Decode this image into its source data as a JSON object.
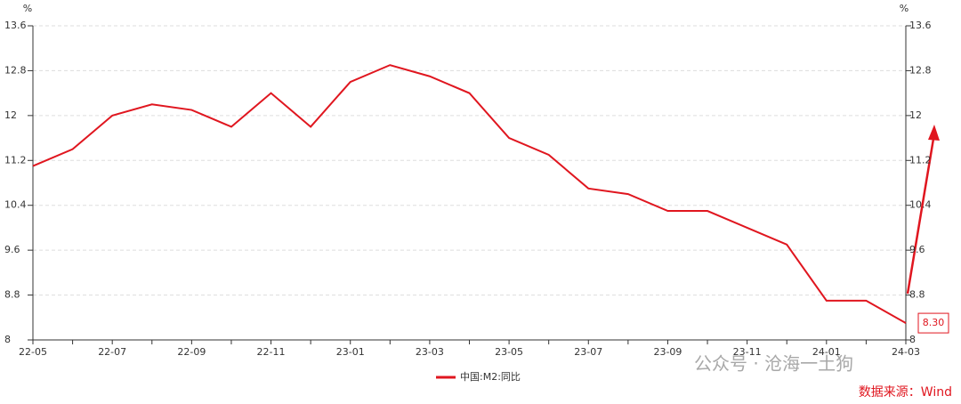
{
  "chart_data": {
    "type": "line",
    "y_unit": "%",
    "y2_unit": "%",
    "categories": [
      "22-05",
      null,
      "22-07",
      null,
      "22-09",
      null,
      "22-11",
      null,
      "23-01",
      null,
      "23-03",
      null,
      "23-05",
      null,
      "23-07",
      null,
      "23-09",
      null,
      "23-11",
      null,
      "24-01",
      null,
      "24-03"
    ],
    "series": [
      {
        "name": "中国:M2:同比",
        "color": "#e0161f",
        "values": [
          11.1,
          11.4,
          12.0,
          12.2,
          12.1,
          11.8,
          12.4,
          11.8,
          12.6,
          12.9,
          12.7,
          12.4,
          11.6,
          11.3,
          10.7,
          10.6,
          10.3,
          10.3,
          10.0,
          9.7,
          8.7,
          8.7,
          8.3
        ],
        "value_labels": [
          null,
          null,
          null,
          null,
          null,
          null,
          null,
          null,
          null,
          null,
          null,
          null,
          null,
          null,
          null,
          null,
          null,
          null,
          null,
          null,
          null,
          null,
          "8.30"
        ]
      }
    ],
    "ylim": [
      8,
      13.6
    ],
    "yticks": [
      8,
      8.8,
      9.6,
      10.4,
      11.2,
      12,
      12.8,
      13.6
    ],
    "y2lim": [
      8,
      13.6
    ],
    "y2ticks": [
      8,
      8.8,
      9.6,
      10.4,
      11.2,
      12,
      12.8,
      13.6
    ],
    "grid": true,
    "legend": "bottom",
    "watermark": "公众号 · 沧海一土狗",
    "source": "数据来源：Wind"
  }
}
